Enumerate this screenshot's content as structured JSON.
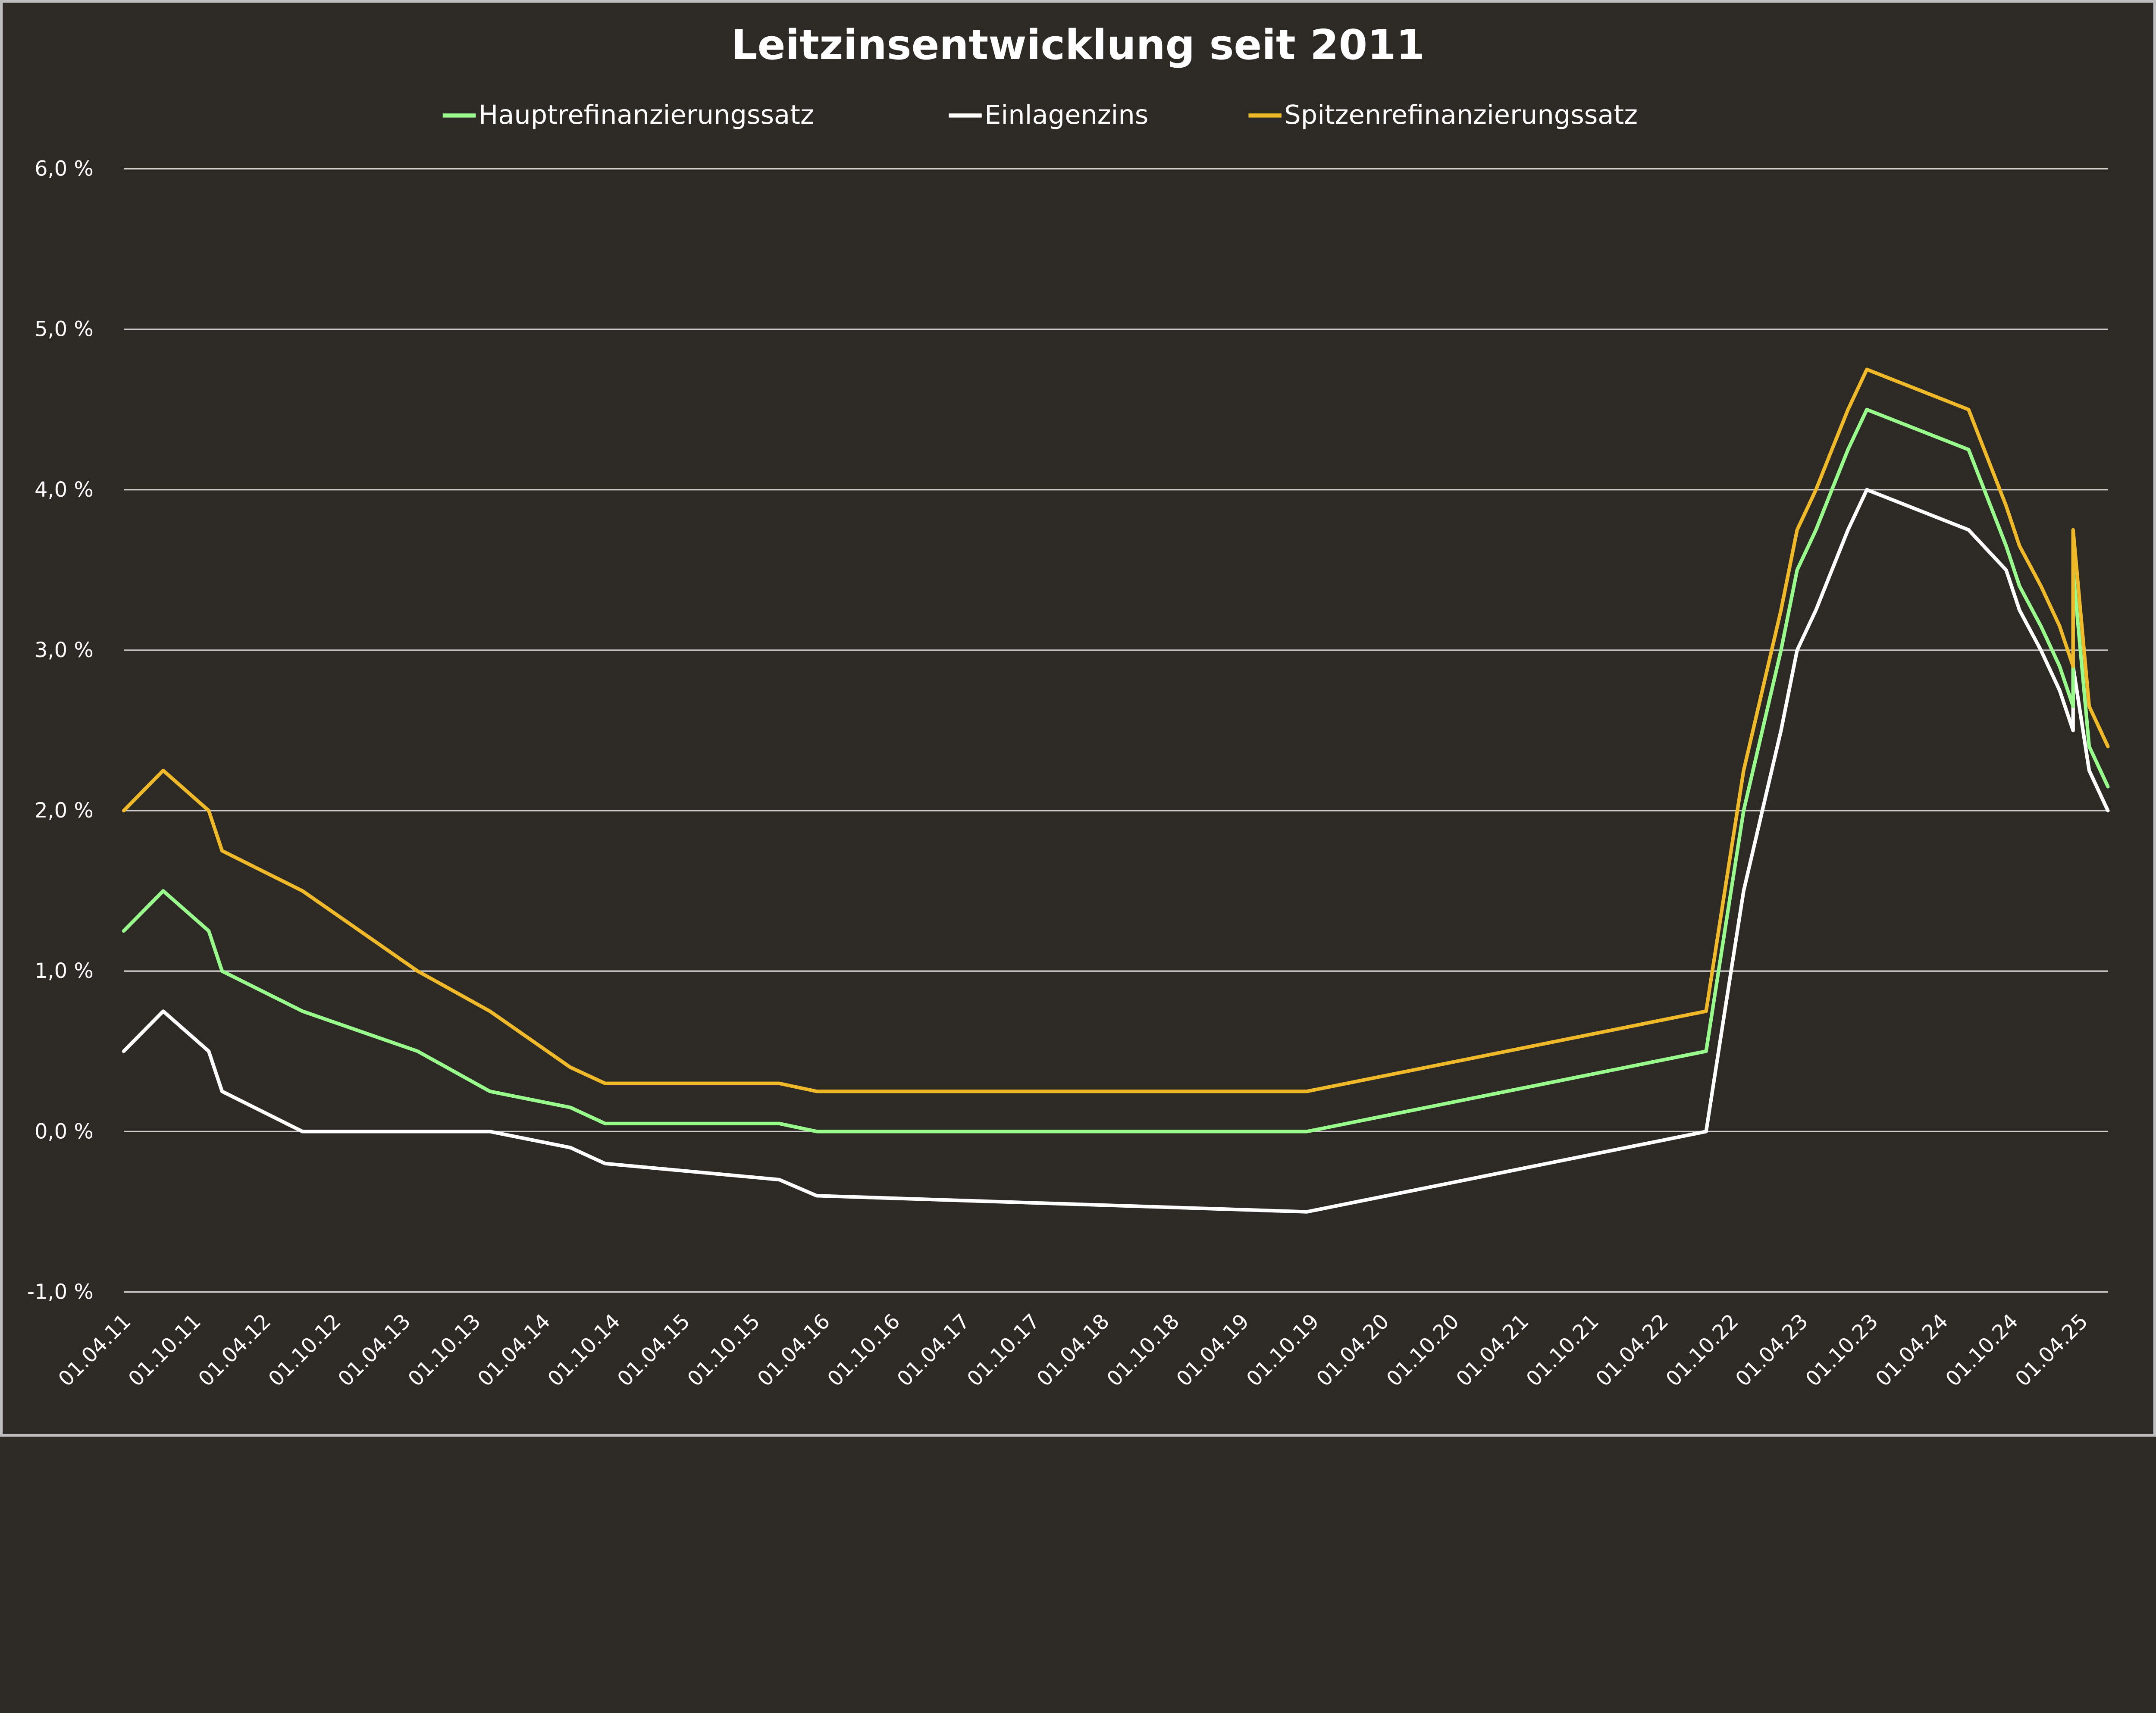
{
  "chart_data": {
    "type": "line",
    "title": "Leitzinsentwicklung seit 2011",
    "xlabel": "",
    "ylabel": "",
    "ylim": [
      -1.0,
      6.0
    ],
    "y_ticks": [
      "-1,0 %",
      "0,0 %",
      "1,0 %",
      "2,0 %",
      "3,0 %",
      "4,0 %",
      "5,0 %",
      "6,0 %"
    ],
    "y_tick_values": [
      -1,
      0,
      1,
      2,
      3,
      4,
      5,
      6
    ],
    "x_ticks": [
      "01.04.11",
      "01.10.11",
      "01.04.12",
      "01.10.12",
      "01.04.13",
      "01.10.13",
      "01.04.14",
      "01.10.14",
      "01.04.15",
      "01.10.15",
      "01.04.16",
      "01.10.16",
      "01.04.17",
      "01.10.17",
      "01.04.18",
      "01.10.18",
      "01.04.19",
      "01.10.19",
      "01.04.20",
      "01.10.20",
      "01.04.21",
      "01.10.21",
      "01.04.22",
      "01.10.22",
      "01.04.23",
      "01.10.23",
      "01.04.24",
      "01.10.24",
      "01.04.25"
    ],
    "grid": true,
    "legend_position": "top",
    "x": [
      "2011-04-01",
      "2011-07-13",
      "2011-11-09",
      "2011-12-14",
      "2012-07-11",
      "2013-05-08",
      "2013-11-13",
      "2014-06-11",
      "2014-09-10",
      "2015-12-09",
      "2016-03-16",
      "2019-09-18",
      "2022-07-27",
      "2022-09-14",
      "2022-11-02",
      "2022-12-21",
      "2023-02-08",
      "2023-03-22",
      "2023-05-10",
      "2023-06-21",
      "2023-08-02",
      "2023-09-20",
      "2024-06-12",
      "2024-09-18",
      "2024-10-23",
      "2024-12-18",
      "2025-02-05",
      "2025-03-12",
      "2025-03-12",
      "2025-04-23",
      "2025-06-11"
    ],
    "series": [
      {
        "name": "Hauptrefinanzierungssatz",
        "color": "#98fb8c",
        "values": [
          1.25,
          1.5,
          1.25,
          1.0,
          0.75,
          0.5,
          0.25,
          0.15,
          0.05,
          0.05,
          0.0,
          0.0,
          0.5,
          1.25,
          2.0,
          2.5,
          3.0,
          3.5,
          3.75,
          4.0,
          4.25,
          4.5,
          4.25,
          3.65,
          3.4,
          3.15,
          2.9,
          2.65,
          3.5,
          2.4,
          2.15
        ]
      },
      {
        "name": "Einlagenzins",
        "color": "#ffffff",
        "values": [
          0.5,
          0.75,
          0.5,
          0.25,
          0.0,
          0.0,
          0.0,
          -0.1,
          -0.2,
          -0.3,
          -0.4,
          -0.5,
          0.0,
          0.75,
          1.5,
          2.0,
          2.5,
          3.0,
          3.25,
          3.5,
          3.75,
          4.0,
          3.75,
          3.5,
          3.25,
          3.0,
          2.75,
          2.5,
          2.9,
          2.25,
          2.0
        ]
      },
      {
        "name": "Spitzenrefinanzierungssatz",
        "color": "#f0b929",
        "values": [
          2.0,
          2.25,
          2.0,
          1.75,
          1.5,
          1.0,
          0.75,
          0.4,
          0.3,
          0.3,
          0.25,
          0.25,
          0.75,
          1.5,
          2.25,
          2.75,
          3.25,
          3.75,
          4.0,
          4.25,
          4.5,
          4.75,
          4.5,
          3.9,
          3.65,
          3.4,
          3.15,
          2.9,
          3.75,
          2.65,
          2.4
        ]
      }
    ]
  }
}
